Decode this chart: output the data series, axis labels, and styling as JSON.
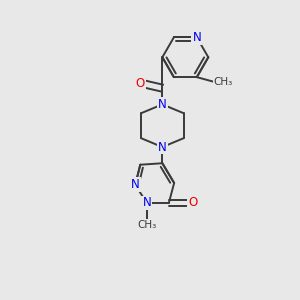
{
  "bg_color": "#e8e8e8",
  "bond_color": "#3a3a3a",
  "N_color": "#0000ee",
  "O_color": "#ee0000",
  "bond_width": 1.4,
  "font_size": 8.5,
  "fig_width": 3.0,
  "fig_height": 3.0,
  "dpi": 100,
  "xlim": [
    0,
    10
  ],
  "ylim": [
    0,
    10
  ]
}
